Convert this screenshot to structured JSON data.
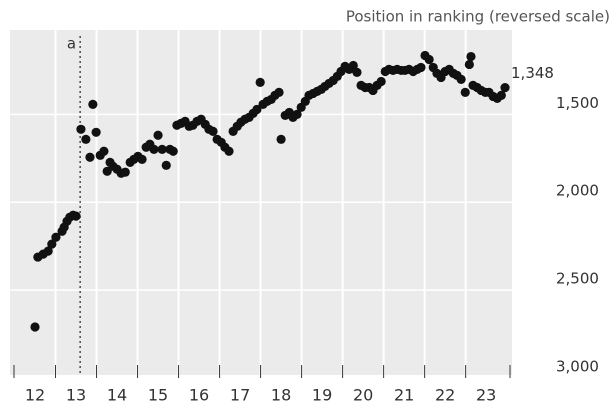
{
  "chart_data": {
    "type": "scatter",
    "title": "Position in ranking (reversed scale)",
    "x": [
      12.0,
      12.07,
      12.2,
      12.32,
      12.41,
      12.51,
      12.66,
      12.71,
      12.78,
      12.85,
      12.93,
      13.0,
      13.12,
      13.24,
      13.34,
      13.41,
      13.49,
      13.59,
      13.68,
      13.76,
      13.83,
      13.9,
      14.0,
      14.1,
      14.2,
      14.32,
      14.41,
      14.51,
      14.61,
      14.71,
      14.8,
      14.9,
      15.0,
      15.1,
      15.2,
      15.29,
      15.37,
      15.46,
      15.56,
      15.66,
      15.76,
      15.85,
      15.95,
      16.05,
      16.15,
      16.24,
      16.34,
      16.44,
      16.54,
      16.63,
      16.73,
      16.83,
      16.93,
      17.02,
      17.12,
      17.22,
      17.32,
      17.41,
      17.49,
      17.56,
      17.66,
      17.76,
      17.85,
      17.95,
      18.0,
      18.1,
      18.2,
      18.29,
      18.39,
      18.49,
      18.59,
      18.68,
      18.78,
      18.88,
      18.98,
      19.07,
      19.17,
      19.27,
      19.37,
      19.46,
      19.56,
      19.66,
      19.76,
      19.85,
      19.95,
      20.05,
      20.15,
      20.24,
      20.34,
      20.44,
      20.54,
      20.63,
      20.73,
      20.83,
      20.93,
      21.02,
      21.12,
      21.22,
      21.32,
      21.41,
      21.51,
      21.61,
      21.71,
      21.8,
      21.9,
      22.0,
      22.1,
      22.2,
      22.29,
      22.39,
      22.49,
      22.59,
      22.63,
      22.68,
      22.78,
      22.88,
      22.98,
      23.07,
      23.17,
      23.27,
      23.37,
      23.46
    ],
    "values": [
      2710,
      2312,
      2295,
      2278,
      2238,
      2199,
      2165,
      2142,
      2108,
      2085,
      2074,
      2079,
      1585,
      1642,
      1744,
      1443,
      1602,
      1733,
      1710,
      1824,
      1773,
      1795,
      1812,
      1835,
      1829,
      1773,
      1756,
      1739,
      1756,
      1687,
      1670,
      1699,
      1619,
      1699,
      1790,
      1699,
      1710,
      1562,
      1551,
      1540,
      1568,
      1562,
      1540,
      1528,
      1557,
      1585,
      1597,
      1642,
      1659,
      1687,
      1710,
      1597,
      1568,
      1545,
      1528,
      1517,
      1494,
      1472,
      1318,
      1443,
      1426,
      1415,
      1392,
      1375,
      1642,
      1506,
      1489,
      1517,
      1500,
      1460,
      1426,
      1392,
      1381,
      1369,
      1358,
      1341,
      1324,
      1307,
      1284,
      1256,
      1227,
      1244,
      1222,
      1261,
      1335,
      1347,
      1347,
      1364,
      1335,
      1313,
      1256,
      1244,
      1250,
      1244,
      1250,
      1250,
      1244,
      1256,
      1244,
      1233,
      1165,
      1188,
      1233,
      1267,
      1290,
      1256,
      1244,
      1267,
      1278,
      1301,
      1375,
      1216,
      1171,
      1335,
      1347,
      1364,
      1375,
      1375,
      1398,
      1409,
      1392,
      1348
    ],
    "color": "#111111",
    "xlim": [
      11.39,
      23.63
    ],
    "xticks": [
      12,
      13,
      14,
      15,
      16,
      17,
      18,
      19,
      20,
      21,
      22,
      23
    ],
    "ylim": [
      1020,
      3000
    ],
    "y_reversed": true,
    "yticks": [
      {
        "value": 1500,
        "label": "1,500"
      },
      {
        "value": 2000,
        "label": "2,000"
      },
      {
        "value": 2500,
        "label": "2,500"
      },
      {
        "value": 3000,
        "label": "3,000"
      }
    ],
    "grid": true,
    "annotations": [
      {
        "text": "a",
        "x": 13.1
      },
      {
        "text": "1,348",
        "x": 23.46,
        "y": 1348
      }
    ]
  }
}
